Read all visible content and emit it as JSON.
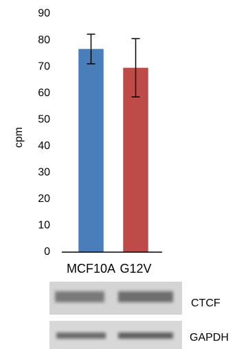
{
  "chart_data": {
    "type": "bar",
    "ylabel": "cpm",
    "categories": [
      "MCF10A",
      "G12V"
    ],
    "values": [
      76.7,
      69.6
    ],
    "errors": [
      5.6,
      11
    ],
    "colors": [
      "#4a7ebb",
      "#be4b48"
    ],
    "ylim": [
      0,
      90
    ],
    "yticks": [
      0,
      10,
      20,
      30,
      40,
      50,
      60,
      70,
      80,
      90
    ],
    "grid": false,
    "annotations": [
      "CTCF",
      "GAPDH"
    ]
  }
}
